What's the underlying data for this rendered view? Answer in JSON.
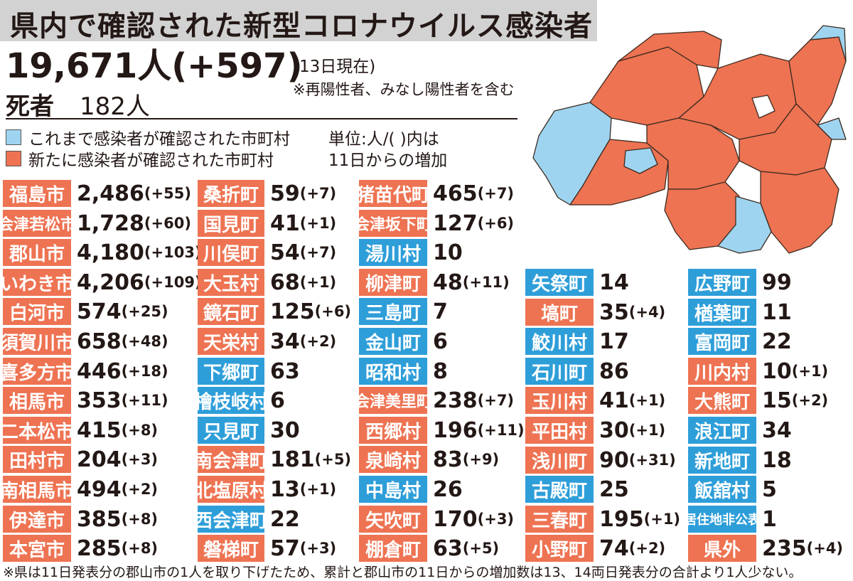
{
  "title": "県内で確認された新型コロナウイルス感染者",
  "total": "19,671人(+597)",
  "as_of": "(13日現在)",
  "note_top": "※再陽性者、みなし陽性者を含む",
  "deaths_label": "死者",
  "deaths_value": "182人",
  "legend_old": "これまで感染者が確認された市町村",
  "legend_new": "新たに感染者が確認された市町村",
  "unit_line1": "単位:人/(  )内は",
  "unit_line2": "11日からの増加",
  "footnote": "※県は11日発表分の郡山市の1人を取り下げたため、累計と郡山市の11日からの増加数は13、14両日発表分の合計より1人少ない。",
  "colors": {
    "new": "#ee7352",
    "old": "#2e9ed9",
    "title_bg": "#d2d2d2"
  },
  "columns": [
    [
      {
        "name": "福島市",
        "count": "2,486",
        "diff": "(+55)",
        "status": "new"
      },
      {
        "name": "会津若松市",
        "count": "1,728",
        "diff": "(+60)",
        "status": "new"
      },
      {
        "name": "郡山市",
        "count": "4,180",
        "diff": "(+103)",
        "status": "new"
      },
      {
        "name": "いわき市",
        "count": "4,206",
        "diff": "(+109)",
        "status": "new"
      },
      {
        "name": "白河市",
        "count": "574",
        "diff": "(+25)",
        "status": "new"
      },
      {
        "name": "須賀川市",
        "count": "658",
        "diff": "(+48)",
        "status": "new"
      },
      {
        "name": "喜多方市",
        "count": "446",
        "diff": "(+18)",
        "status": "new"
      },
      {
        "name": "相馬市",
        "count": "353",
        "diff": "(+11)",
        "status": "new"
      },
      {
        "name": "二本松市",
        "count": "415",
        "diff": "(+8)",
        "status": "new"
      },
      {
        "name": "田村市",
        "count": "204",
        "diff": "(+3)",
        "status": "new"
      },
      {
        "name": "南相馬市",
        "count": "494",
        "diff": "(+2)",
        "status": "new"
      },
      {
        "name": "伊達市",
        "count": "385",
        "diff": "(+8)",
        "status": "new"
      },
      {
        "name": "本宮市",
        "count": "285",
        "diff": "(+8)",
        "status": "new"
      }
    ],
    [
      {
        "name": "桑折町",
        "count": "59",
        "diff": "(+7)",
        "status": "new"
      },
      {
        "name": "国見町",
        "count": "41",
        "diff": "(+1)",
        "status": "new"
      },
      {
        "name": "川俣町",
        "count": "54",
        "diff": "(+7)",
        "status": "new"
      },
      {
        "name": "大玉村",
        "count": "68",
        "diff": "(+1)",
        "status": "new"
      },
      {
        "name": "鏡石町",
        "count": "125",
        "diff": "(+6)",
        "status": "new"
      },
      {
        "name": "天栄村",
        "count": "34",
        "diff": "(+2)",
        "status": "new"
      },
      {
        "name": "下郷町",
        "count": "63",
        "diff": "",
        "status": "old"
      },
      {
        "name": "檜枝岐村",
        "count": "6",
        "diff": "",
        "status": "old"
      },
      {
        "name": "只見町",
        "count": "30",
        "diff": "",
        "status": "old"
      },
      {
        "name": "南会津町",
        "count": "181",
        "diff": "(+5)",
        "status": "new"
      },
      {
        "name": "北塩原村",
        "count": "13",
        "diff": "(+1)",
        "status": "new"
      },
      {
        "name": "西会津町",
        "count": "22",
        "diff": "",
        "status": "old"
      },
      {
        "name": "磐梯町",
        "count": "57",
        "diff": "(+3)",
        "status": "new"
      }
    ],
    [
      {
        "name": "猪苗代町",
        "count": "465",
        "diff": "(+7)",
        "status": "new"
      },
      {
        "name": "会津坂下町",
        "count": "127",
        "diff": "(+6)",
        "status": "new"
      },
      {
        "name": "湯川村",
        "count": "10",
        "diff": "",
        "status": "old"
      },
      {
        "name": "柳津町",
        "count": "48",
        "diff": "(+11)",
        "status": "new"
      },
      {
        "name": "三島町",
        "count": "7",
        "diff": "",
        "status": "old"
      },
      {
        "name": "金山町",
        "count": "6",
        "diff": "",
        "status": "old"
      },
      {
        "name": "昭和村",
        "count": "8",
        "diff": "",
        "status": "old"
      },
      {
        "name": "会津美里町",
        "count": "238",
        "diff": "(+7)",
        "status": "new"
      },
      {
        "name": "西郷村",
        "count": "196",
        "diff": "(+11)",
        "status": "new"
      },
      {
        "name": "泉崎村",
        "count": "83",
        "diff": "(+9)",
        "status": "new"
      },
      {
        "name": "中島村",
        "count": "26",
        "diff": "",
        "status": "old"
      },
      {
        "name": "矢吹町",
        "count": "170",
        "diff": "(+3)",
        "status": "new"
      },
      {
        "name": "棚倉町",
        "count": "63",
        "diff": "(+5)",
        "status": "new"
      }
    ],
    [
      {
        "name": "矢祭町",
        "count": "14",
        "diff": "",
        "status": "old"
      },
      {
        "name": "塙町",
        "count": "35",
        "diff": "(+4)",
        "status": "new"
      },
      {
        "name": "鮫川村",
        "count": "17",
        "diff": "",
        "status": "old"
      },
      {
        "name": "石川町",
        "count": "86",
        "diff": "",
        "status": "old"
      },
      {
        "name": "玉川村",
        "count": "41",
        "diff": "(+1)",
        "status": "new"
      },
      {
        "name": "平田村",
        "count": "30",
        "diff": "(+1)",
        "status": "new"
      },
      {
        "name": "浅川町",
        "count": "90",
        "diff": "(+31)",
        "status": "new"
      },
      {
        "name": "古殿町",
        "count": "25",
        "diff": "",
        "status": "old"
      },
      {
        "name": "三春町",
        "count": "195",
        "diff": "(+1)",
        "status": "new"
      },
      {
        "name": "小野町",
        "count": "74",
        "diff": "(+2)",
        "status": "new"
      }
    ],
    [
      {
        "name": "広野町",
        "count": "99",
        "diff": "",
        "status": "old"
      },
      {
        "name": "楢葉町",
        "count": "11",
        "diff": "",
        "status": "old"
      },
      {
        "name": "富岡町",
        "count": "22",
        "diff": "",
        "status": "old"
      },
      {
        "name": "川内村",
        "count": "10",
        "diff": "(+1)",
        "status": "new"
      },
      {
        "name": "大熊町",
        "count": "15",
        "diff": "(+2)",
        "status": "new"
      },
      {
        "name": "浪江町",
        "count": "34",
        "diff": "",
        "status": "old"
      },
      {
        "name": "新地町",
        "count": "18",
        "diff": "",
        "status": "old"
      },
      {
        "name": "飯舘村",
        "count": "5",
        "diff": "",
        "status": "old"
      },
      {
        "name": "居住地非公表",
        "count": "1",
        "diff": "",
        "status": "old"
      },
      {
        "name": "県外",
        "count": "235",
        "diff": "(+4)",
        "status": "new"
      }
    ]
  ]
}
